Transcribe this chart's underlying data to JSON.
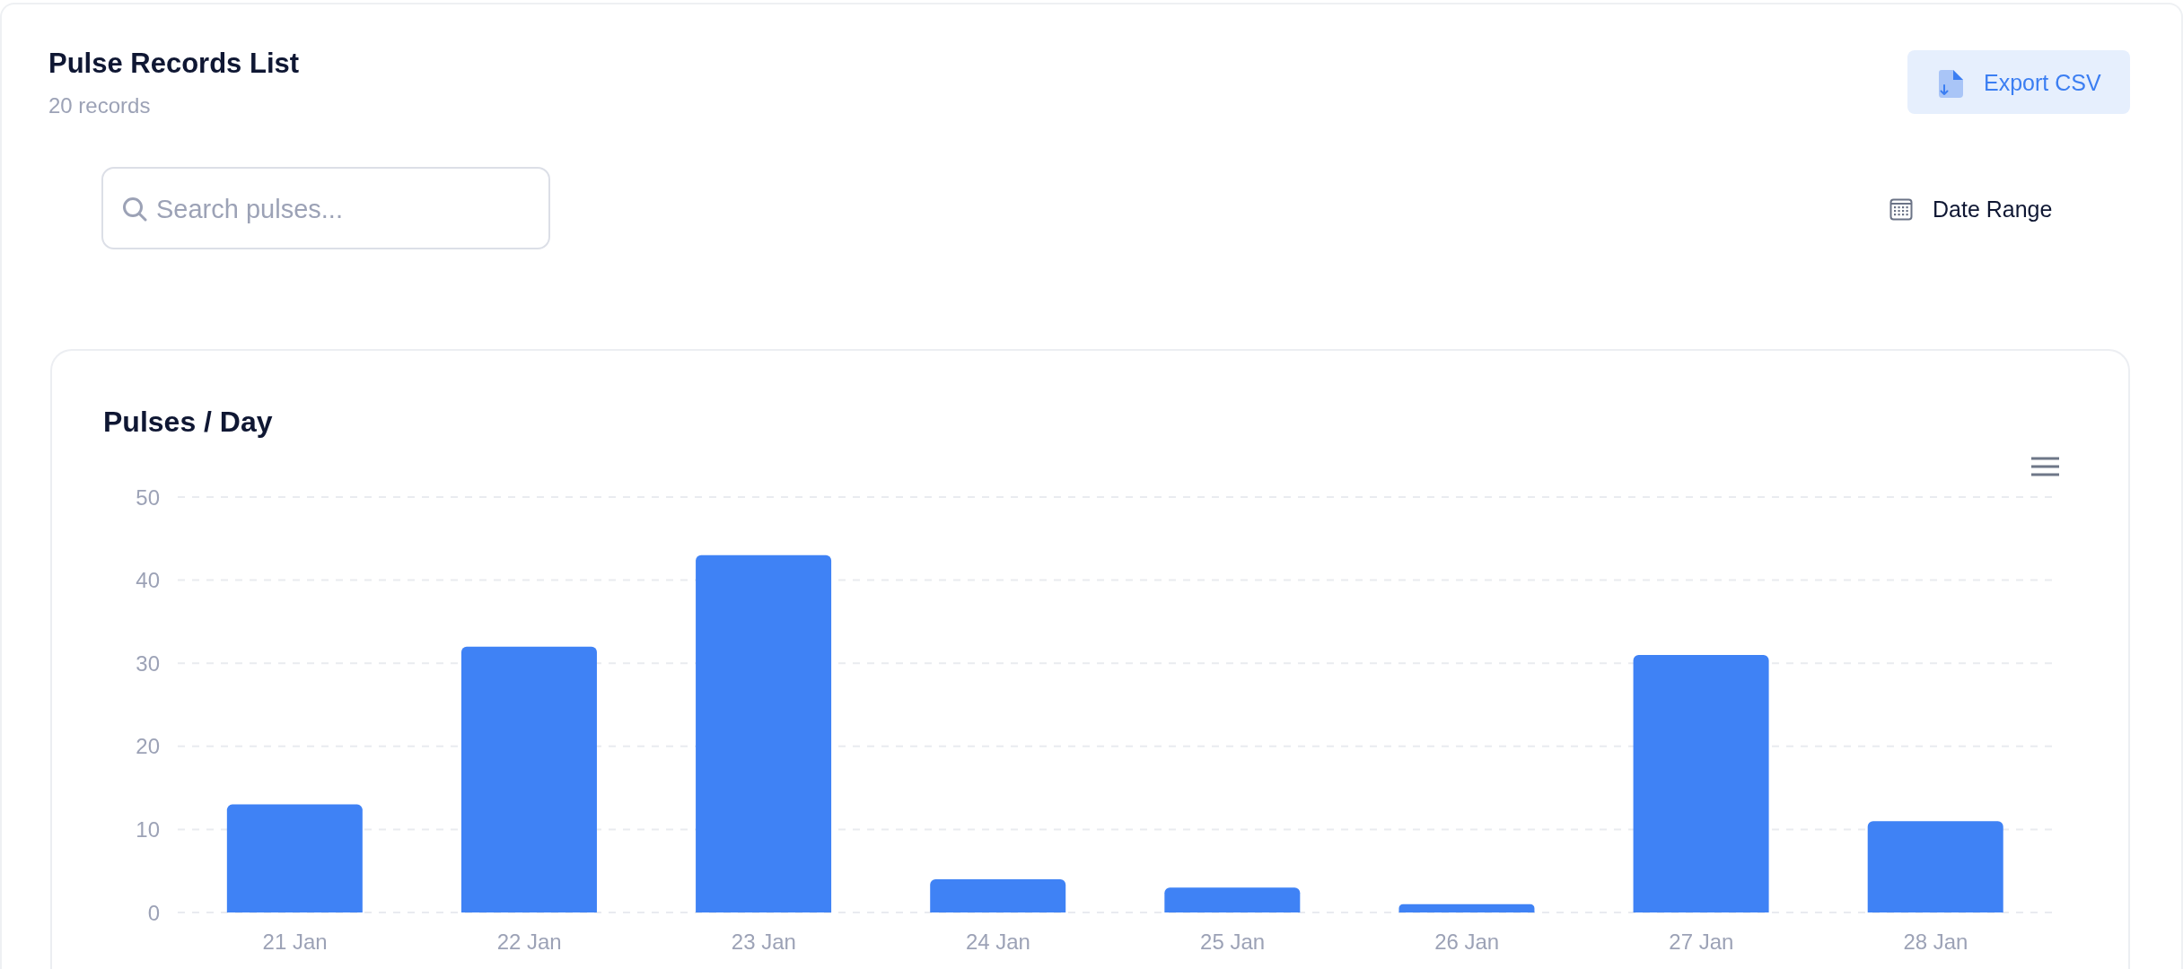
{
  "chart_data": [
    {
      "type": "other",
      "title": "Pulse Records List",
      "subtitle": "20 records",
      "annotations": [
        "Export CSV",
        "Search pulses...",
        "Date Range"
      ]
    },
    {
      "type": "bar",
      "title": "Pulses / Day",
      "categories": [
        "21 Jan",
        "22 Jan",
        "23 Jan",
        "24 Jan",
        "25 Jan",
        "26 Jan",
        "27 Jan",
        "28 Jan"
      ],
      "values": [
        13,
        32,
        43,
        4,
        3,
        1,
        31,
        11
      ],
      "color": "#3f82f5",
      "ylim": [
        0,
        50
      ],
      "yticks": [
        0,
        10,
        20,
        30,
        40,
        50
      ],
      "grid": "y"
    }
  ]
}
